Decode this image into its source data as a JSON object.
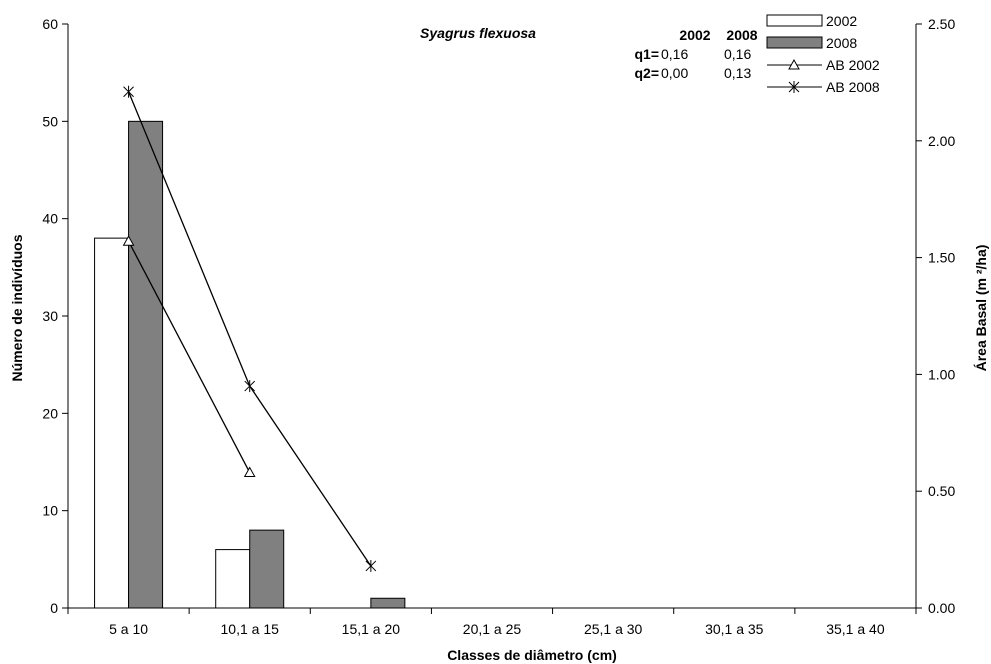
{
  "chart_data": {
    "type": "bar",
    "title": "Syagrus flexuosa",
    "xlabel": "Classes de diâmetro (cm)",
    "ylabel": "Número de indivíduos",
    "y2label": "Área Basal (m ²/ha)",
    "categories": [
      "5 a 10",
      "10,1 a 15",
      "15,1 a 20",
      "20,1 a 25",
      "25,1 a 30",
      "30,1 a 35",
      "35,1 a 40"
    ],
    "ylim": [
      0,
      60
    ],
    "yticks": [
      0,
      10,
      20,
      30,
      40,
      50,
      60
    ],
    "ytick_labels": [
      "0",
      "10",
      "20",
      "30",
      "40",
      "50",
      "60"
    ],
    "y2lim": [
      0,
      2.5
    ],
    "y2ticks": [
      0,
      0.5,
      1.0,
      1.5,
      2.0,
      2.5
    ],
    "y2tick_labels": [
      "0.00",
      "0.50",
      "1.00",
      "1.50",
      "2.00",
      "2.50"
    ],
    "grid": false,
    "legend_position": "top-right",
    "series": [
      {
        "name": "2002",
        "kind": "bar",
        "axis": "left",
        "color": "#ffffff",
        "values": [
          38,
          6,
          0,
          0,
          0,
          0,
          0
        ]
      },
      {
        "name": "2008",
        "kind": "bar",
        "axis": "left",
        "color": "#808080",
        "values": [
          50,
          8,
          1,
          0,
          0,
          0,
          0
        ]
      },
      {
        "name": "AB 2002",
        "kind": "line",
        "axis": "right",
        "marker": "triangle",
        "color": "#000000",
        "values": [
          1.57,
          0.58,
          null,
          null,
          null,
          null,
          null
        ]
      },
      {
        "name": "AB 2008",
        "kind": "line",
        "axis": "right",
        "marker": "asterisk",
        "color": "#000000",
        "values": [
          2.21,
          0.95,
          0.18,
          null,
          null,
          null,
          null
        ]
      }
    ],
    "q_table": {
      "col_headers": [
        "2002",
        "2008"
      ],
      "rows": [
        {
          "label": "q1=",
          "values": [
            "0,16",
            "0,16"
          ]
        },
        {
          "label": "q2=",
          "values": [
            "0,00",
            "0,13"
          ]
        }
      ]
    }
  }
}
